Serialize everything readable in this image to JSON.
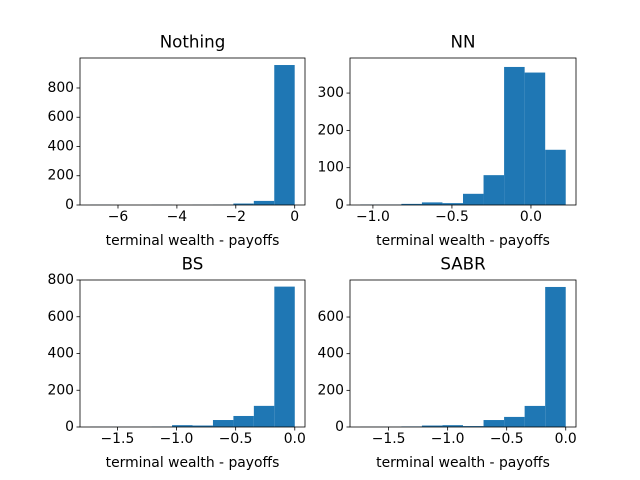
{
  "chart_data": [
    {
      "type": "histogram",
      "title": "Nothing",
      "xlabel": "terminal wealth - payoffs",
      "color": "#1f77b4",
      "bins": [
        -6.94,
        -6.246,
        -5.552,
        -4.858,
        -4.164,
        -3.47,
        -2.776,
        -2.082,
        -1.388,
        -0.694,
        0
      ],
      "counts": [
        1,
        0,
        0,
        1,
        0,
        1,
        2,
        10,
        28,
        957
      ],
      "xlim": [
        -7.29,
        0.35
      ],
      "ylim": [
        0,
        1005
      ],
      "xticks": [
        {
          "value": -6,
          "label": "−6"
        },
        {
          "value": -4,
          "label": "−4"
        },
        {
          "value": -2,
          "label": "−2"
        },
        0
      ],
      "yticks": [
        0,
        200,
        400,
        600,
        800
      ]
    },
    {
      "type": "histogram",
      "title": "NN",
      "xlabel": "terminal wealth - payoffs",
      "color": "#1f77b4",
      "bins": [
        -1.08,
        -0.95,
        -0.82,
        -0.69,
        -0.56,
        -0.43,
        -0.3,
        -0.17,
        -0.04,
        0.09,
        0.22
      ],
      "counts": [
        1,
        1,
        3,
        7,
        5,
        30,
        80,
        370,
        355,
        148
      ],
      "xlim": [
        -1.145,
        0.285
      ],
      "ylim": [
        0,
        394
      ],
      "xticks": [
        {
          "value": -1.0,
          "label": "−1.0"
        },
        {
          "value": -0.5,
          "label": "−0.5"
        },
        {
          "value": 0,
          "label": "0.0"
        }
      ],
      "yticks": [
        0,
        100,
        200,
        300
      ]
    },
    {
      "type": "histogram",
      "title": "BS",
      "xlabel": "terminal wealth - payoffs",
      "color": "#1f77b4",
      "bins": [
        -1.73,
        -1.557,
        -1.384,
        -1.211,
        -1.038,
        -0.865,
        -0.692,
        -0.519,
        -0.346,
        -0.173,
        0
      ],
      "counts": [
        1,
        1,
        1,
        2,
        10,
        8,
        38,
        60,
        115,
        764
      ],
      "xlim": [
        -1.8165,
        0.0865
      ],
      "ylim": [
        0,
        800
      ],
      "xticks": [
        {
          "value": -1.5,
          "label": "−1.5"
        },
        {
          "value": -1.0,
          "label": "−1.0"
        },
        {
          "value": -0.5,
          "label": "−0.5"
        },
        {
          "value": 0,
          "label": "0.0"
        }
      ],
      "yticks": [
        0,
        200,
        400,
        600,
        800
      ]
    },
    {
      "type": "histogram",
      "title": "SABR",
      "xlabel": "terminal wealth - payoffs",
      "color": "#1f77b4",
      "bins": [
        -1.74,
        -1.566,
        -1.392,
        -1.218,
        -1.044,
        -0.87,
        -0.696,
        -0.522,
        -0.348,
        -0.174,
        0
      ],
      "counts": [
        1,
        1,
        3,
        8,
        10,
        5,
        38,
        55,
        115,
        764
      ],
      "xlim": [
        -1.827,
        0.087
      ],
      "ylim": [
        0,
        802
      ],
      "xticks": [
        {
          "value": -1.5,
          "label": "−1.5"
        },
        {
          "value": -1.0,
          "label": "−1.0"
        },
        {
          "value": -0.5,
          "label": "−0.5"
        },
        {
          "value": 0,
          "label": "0.0"
        }
      ],
      "yticks": [
        0,
        200,
        400,
        600
      ]
    }
  ]
}
